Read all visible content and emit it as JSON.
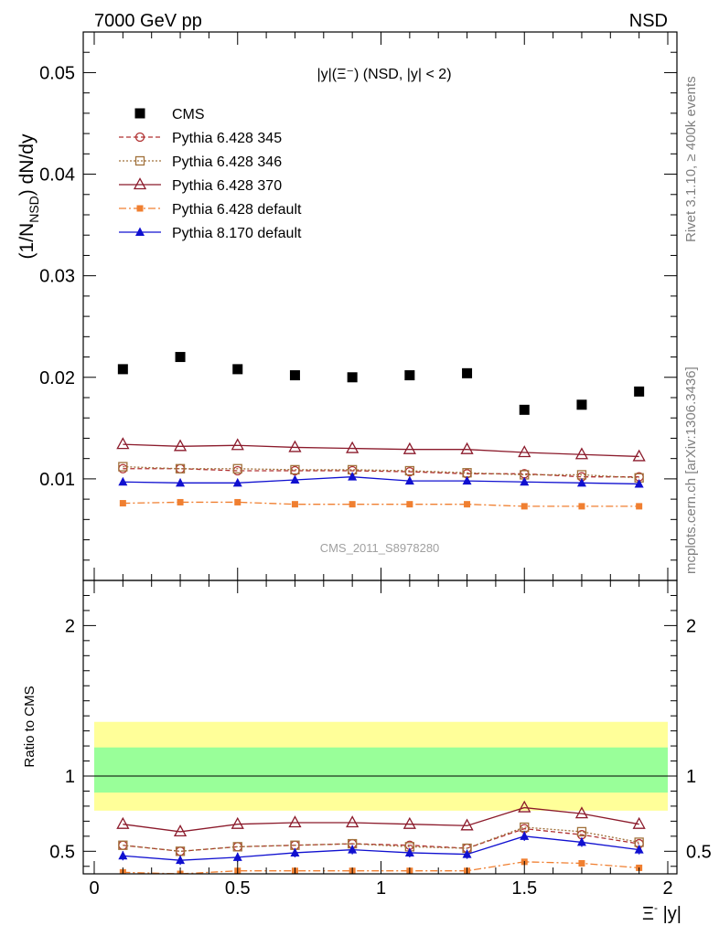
{
  "header": {
    "left": "7000 GeV pp",
    "right": "NSD"
  },
  "side_labels": {
    "rivet": "Rivet 3.1.10, ≥ 400k events",
    "mcplots": "mcplots.cern.ch [arXiv:1306.3436]"
  },
  "analysis_id": "CMS_2011_S8978280",
  "colors": {
    "cms": "#000000",
    "p345": "#b03030",
    "p346": "#a0703a",
    "p370": "#8b1a2b",
    "p6def": "#f07f30",
    "p8def": "#1010d0",
    "band_yellow": "#ffff99",
    "band_green": "#99ff99"
  },
  "chart_data": [
    {
      "type": "scatter",
      "title": "|y|(Ξ⁻) (NSD, |y| < 2)",
      "ylabel": "(1/N_NSD) dN/dy",
      "xlim": [
        -0.1,
        2.05
      ],
      "ylim": [
        0,
        0.054
      ],
      "yticks": [
        0.01,
        0.02,
        0.03,
        0.04,
        0.05
      ],
      "ytick_labels": [
        "0.01",
        "0.02",
        "0.03",
        "0.04",
        "0.05"
      ],
      "x": [
        0.1,
        0.3,
        0.5,
        0.7,
        0.9,
        1.1,
        1.3,
        1.5,
        1.7,
        1.9
      ],
      "series": [
        {
          "name": "CMS",
          "key": "cms",
          "marker": "square-filled",
          "line": "none",
          "values": [
            0.0208,
            0.022,
            0.0208,
            0.0202,
            0.02,
            0.0202,
            0.0204,
            0.0168,
            0.0173,
            0.0186
          ]
        },
        {
          "name": "Pythia 6.428 345",
          "key": "p345",
          "marker": "circle-open",
          "line": "dashed",
          "values": [
            0.011,
            0.011,
            0.0108,
            0.0108,
            0.0108,
            0.0107,
            0.0105,
            0.0105,
            0.0102,
            0.0102
          ]
        },
        {
          "name": "Pythia 6.428 346",
          "key": "p346",
          "marker": "square-open",
          "line": "dotted",
          "values": [
            0.0112,
            0.011,
            0.011,
            0.0109,
            0.0109,
            0.0108,
            0.0106,
            0.0104,
            0.0104,
            0.0101
          ]
        },
        {
          "name": "Pythia 6.428 370",
          "key": "p370",
          "marker": "triangle-open",
          "line": "solid",
          "values": [
            0.0134,
            0.0132,
            0.0133,
            0.0131,
            0.013,
            0.0129,
            0.0129,
            0.0126,
            0.0124,
            0.0122
          ]
        },
        {
          "name": "Pythia 6.428 default",
          "key": "p6def",
          "marker": "square-filled-small",
          "line": "dashdot",
          "values": [
            0.0076,
            0.0077,
            0.0077,
            0.0075,
            0.0075,
            0.0075,
            0.0075,
            0.0073,
            0.0073,
            0.0073
          ]
        },
        {
          "name": "Pythia 8.170 default",
          "key": "p8def",
          "marker": "triangle-filled",
          "line": "solid",
          "values": [
            0.0097,
            0.0096,
            0.0096,
            0.0099,
            0.0102,
            0.0098,
            0.0098,
            0.0097,
            0.0096,
            0.0095
          ]
        }
      ]
    },
    {
      "type": "line",
      "ylabel": "Ratio to CMS",
      "xlabel": "Ξ⁻ |y|",
      "xlim": [
        -0.1,
        2.05
      ],
      "ylim": [
        0.35,
        2.3
      ],
      "yticks": [
        0.5,
        1,
        2
      ],
      "ytick_labels": [
        "0.5",
        "1",
        "2"
      ],
      "xticks": [
        0,
        0.5,
        1,
        1.5,
        2
      ],
      "xtick_labels": [
        "0",
        "0.5",
        "1",
        "1.5",
        "2"
      ],
      "x": [
        0.1,
        0.3,
        0.5,
        0.7,
        0.9,
        1.1,
        1.3,
        1.5,
        1.7,
        1.9
      ],
      "band_yellow": [
        0.77,
        1.36
      ],
      "band_green": [
        0.89,
        1.19
      ],
      "series": [
        {
          "name": "Pythia 6.428 345",
          "key": "p345",
          "marker": "circle-open",
          "line": "dashed",
          "values": [
            0.54,
            0.5,
            0.53,
            0.54,
            0.55,
            0.54,
            0.52,
            0.65,
            0.61,
            0.55
          ]
        },
        {
          "name": "Pythia 6.428 346",
          "key": "p346",
          "marker": "square-open",
          "line": "dotted",
          "values": [
            0.54,
            0.5,
            0.53,
            0.54,
            0.55,
            0.53,
            0.52,
            0.66,
            0.63,
            0.56
          ]
        },
        {
          "name": "Pythia 6.428 370",
          "key": "p370",
          "marker": "triangle-open",
          "line": "solid",
          "values": [
            0.68,
            0.63,
            0.68,
            0.69,
            0.69,
            0.68,
            0.67,
            0.79,
            0.75,
            0.68
          ]
        },
        {
          "name": "Pythia 6.428 default",
          "key": "p6def",
          "marker": "square-filled-small",
          "line": "dashdot",
          "values": [
            0.36,
            0.35,
            0.37,
            0.37,
            0.37,
            0.37,
            0.37,
            0.43,
            0.42,
            0.39
          ]
        },
        {
          "name": "Pythia 8.170 default",
          "key": "p8def",
          "marker": "triangle-filled",
          "line": "solid",
          "values": [
            0.47,
            0.44,
            0.46,
            0.49,
            0.51,
            0.49,
            0.48,
            0.6,
            0.56,
            0.51
          ]
        }
      ]
    }
  ]
}
